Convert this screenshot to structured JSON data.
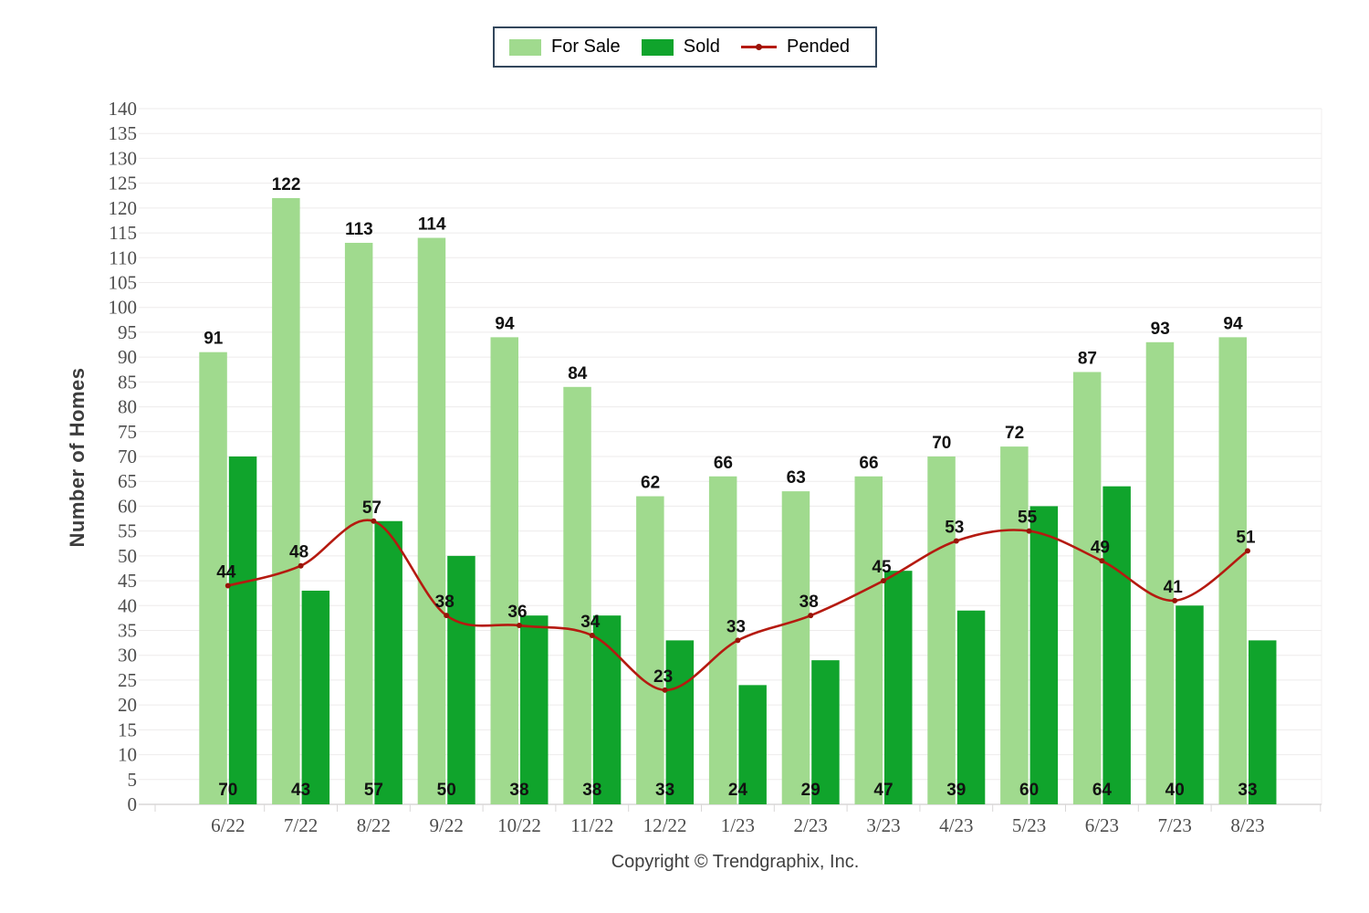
{
  "legend": {
    "for_sale": "For Sale",
    "sold": "Sold",
    "pended": "Pended"
  },
  "copyright": "Copyright © Trendgraphix, Inc.",
  "colors": {
    "for_sale": "#a0da8e",
    "sold": "#10a42c",
    "pended_line": "#b51a10",
    "pended_marker": "#981408",
    "gridline": "#edebeb",
    "axis_line": "#d9d7d7",
    "tick_text": "#4d4d4d",
    "legend_border": "#33475c"
  },
  "chart_data": {
    "type": "bar",
    "title": "",
    "xlabel": "",
    "ylabel": "Number of Homes",
    "ylim": [
      0,
      140
    ],
    "ytick_step": 5,
    "grid": true,
    "legend_position": "top-center",
    "categories": [
      "6/22",
      "7/22",
      "8/22",
      "9/22",
      "10/22",
      "11/22",
      "12/22",
      "1/23",
      "2/23",
      "3/23",
      "4/23",
      "5/23",
      "6/23",
      "7/23",
      "8/23"
    ],
    "series": [
      {
        "name": "For Sale",
        "type": "bar",
        "color": "#a0da8e",
        "values": [
          91,
          122,
          113,
          114,
          94,
          84,
          62,
          66,
          63,
          66,
          70,
          72,
          87,
          93,
          94
        ]
      },
      {
        "name": "Sold",
        "type": "bar",
        "color": "#10a42c",
        "values": [
          70,
          43,
          57,
          50,
          38,
          38,
          33,
          24,
          29,
          47,
          39,
          60,
          64,
          40,
          33
        ]
      },
      {
        "name": "Pended",
        "type": "line",
        "color": "#b51a10",
        "values": [
          44,
          48,
          57,
          38,
          36,
          34,
          23,
          33,
          38,
          45,
          53,
          55,
          49,
          41,
          51
        ]
      }
    ]
  }
}
